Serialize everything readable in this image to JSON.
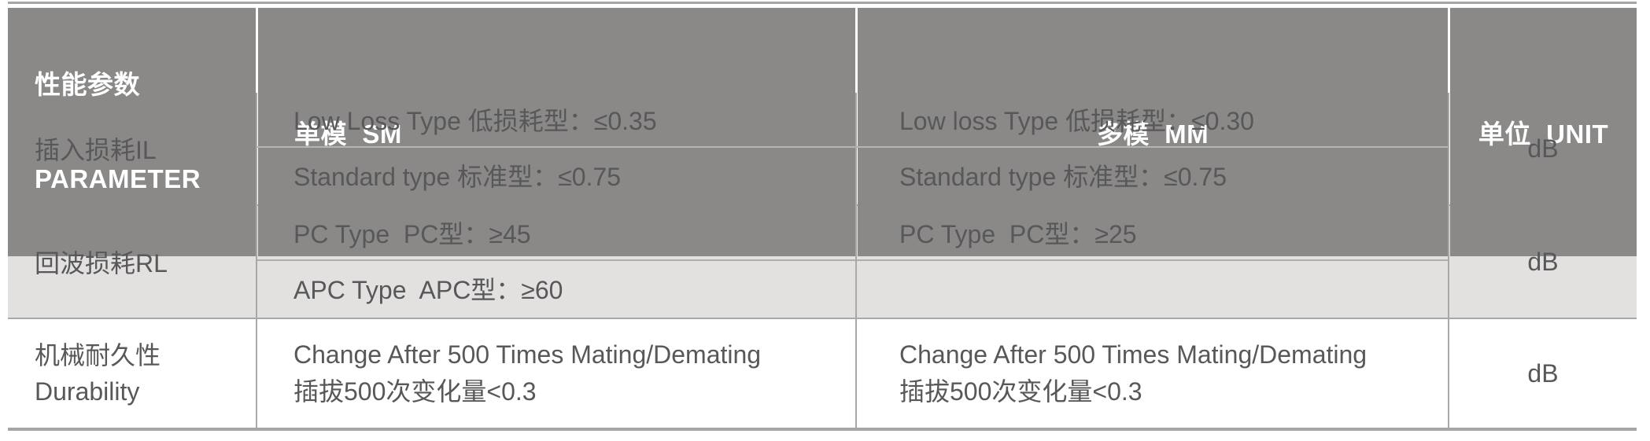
{
  "colors": {
    "header_bg": "#8a8988",
    "header_text": "#ffffff",
    "body_text": "#58585a",
    "band_bg": "#e2e1df",
    "rule": "#a9a9a8",
    "sub_rule": "#b5b5b4"
  },
  "table": {
    "header": {
      "param_line1": "性能参数",
      "param_line2": "PARAMETER",
      "sm": "单模  SM",
      "mm": "多模  MM",
      "unit": "单位  UNIT"
    },
    "rows": {
      "insertion_loss": {
        "param": "插入损耗IL",
        "sm1": "Low Loss Type 低损耗型：≤0.35",
        "sm2": "Standard type 标准型：≤0.75",
        "mm1": "Low loss Type 低损耗型：≤0.30",
        "mm2": "",
        "unit": "dB"
      },
      "return_loss": {
        "param": "回波损耗RL",
        "sm1": "PC Type  PC型：≥45",
        "sm2": "APC Type  APC型：≥60",
        "mm1": "PC Type  PC型：≥25",
        "mm2": "",
        "unit": "dB"
      },
      "durability": {
        "param_line1": "机械耐久性",
        "param_line2": "Durability",
        "sm_line1": "Change After 500 Times Mating/Demating",
        "sm_line2": "插拔500次变化量<0.3",
        "mm_line1": "Change After 500 Times Mating/Demating",
        "mm_line2": "插拔500次变化量<0.3",
        "unit": "dB"
      }
    }
  }
}
